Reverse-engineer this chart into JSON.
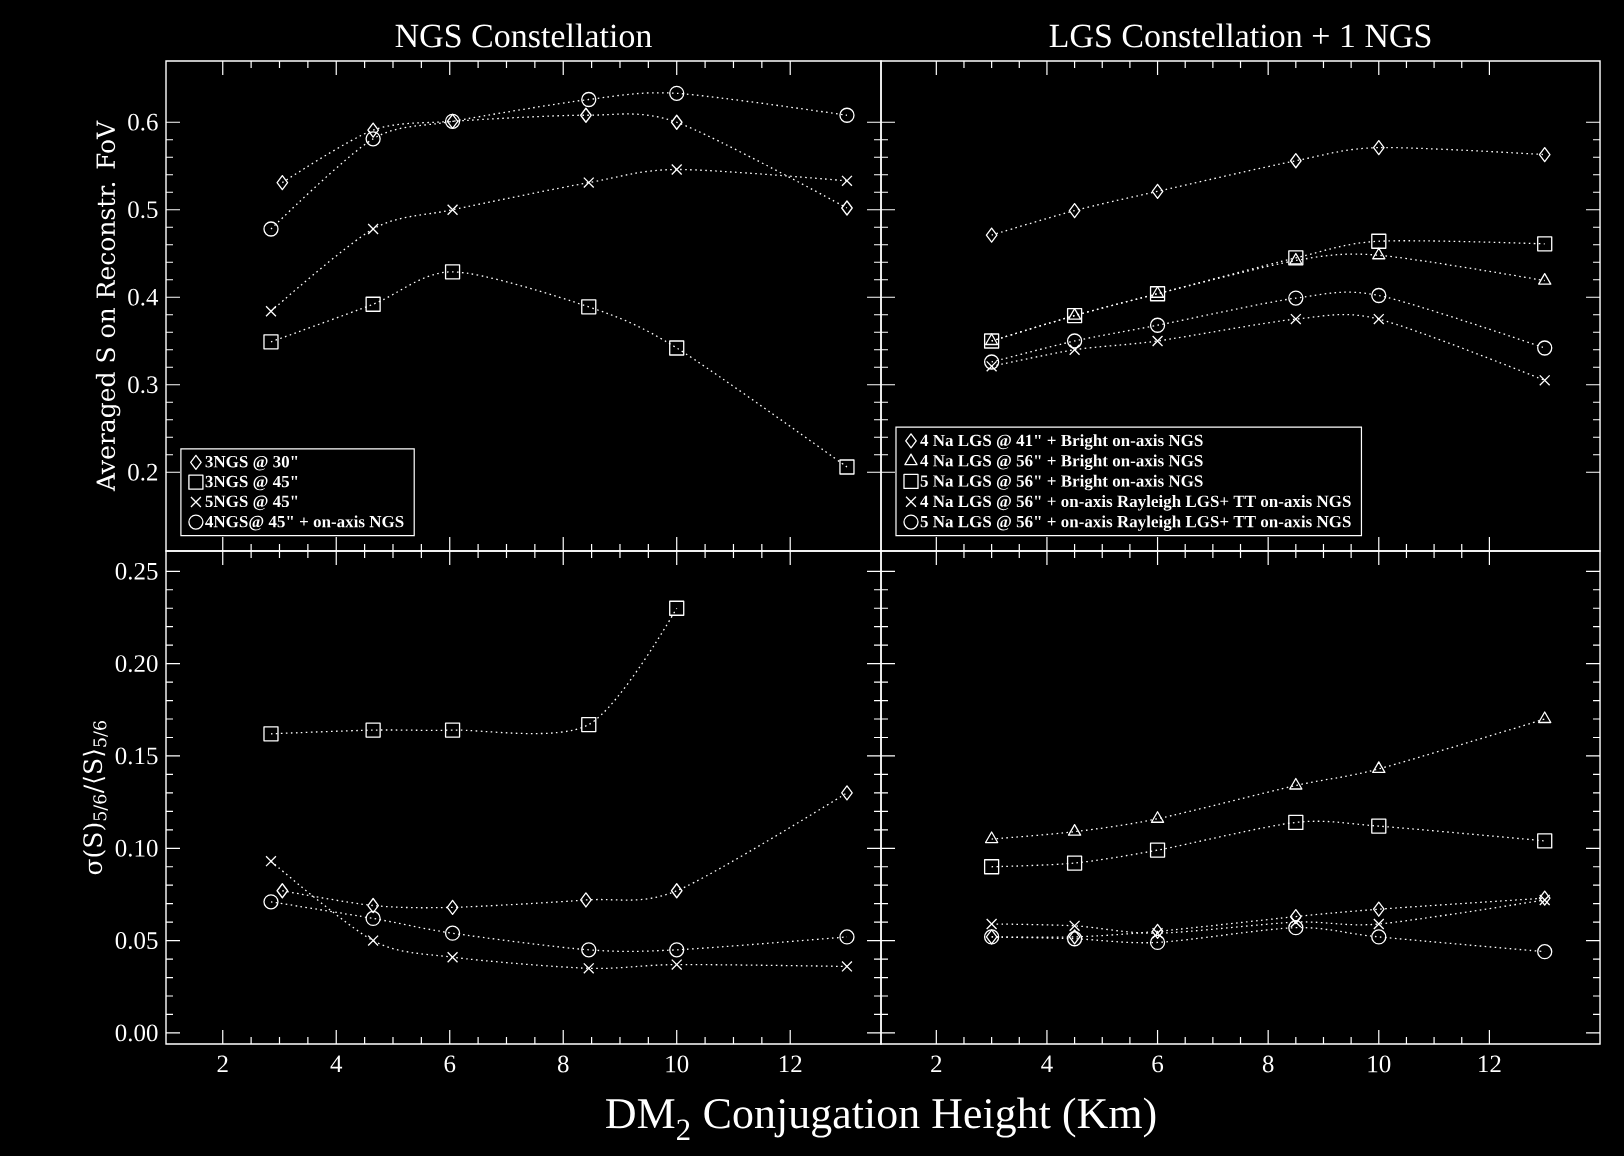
{
  "chart_data": [
    {
      "type": "line",
      "title": "NGS Constellation",
      "ylabel": "Averaged S on Reconstr. FoV",
      "xlim": [
        1,
        13.6
      ],
      "ylim": [
        0.11,
        0.67
      ],
      "xticks": [
        2,
        4,
        6,
        8,
        10,
        12
      ],
      "yticks": [
        0.2,
        0.3,
        0.4,
        0.5,
        0.6
      ],
      "tick_labels": "y",
      "legend": "bottom left",
      "line_style": "dotted",
      "series": [
        {
          "name": "3NGS @ 30\"",
          "color": "#ffffff",
          "marker": "diamond",
          "x": [
            3.05,
            4.65,
            6.05,
            8.4,
            10,
            13
          ],
          "values": [
            0.531,
            0.591,
            0.601,
            0.608,
            0.6,
            0.502
          ]
        },
        {
          "name": "3NGS @ 45\"",
          "color": "#ffffff",
          "marker": "square",
          "x": [
            2.85,
            4.65,
            6.05,
            8.45,
            10,
            13
          ],
          "values": [
            0.349,
            0.392,
            0.429,
            0.389,
            0.342,
            0.206
          ]
        },
        {
          "name": "5NGS @ 45\"",
          "color": "#ffffff",
          "marker": "cross",
          "x": [
            2.85,
            4.65,
            6.05,
            8.45,
            10,
            13
          ],
          "values": [
            0.384,
            0.478,
            0.5,
            0.531,
            0.546,
            0.533
          ]
        },
        {
          "name": "4NGS@ 45\" + on-axis NGS",
          "color": "#ffffff",
          "marker": "circle",
          "x": [
            2.85,
            4.65,
            6.05,
            8.45,
            10,
            13
          ],
          "values": [
            0.478,
            0.581,
            0.601,
            0.626,
            0.633,
            0.608
          ]
        }
      ]
    },
    {
      "type": "line",
      "title": "LGS Constellation + 1 NGS",
      "xlim": [
        1,
        14
      ],
      "ylim": [
        0.11,
        0.67
      ],
      "xticks": [
        2,
        4,
        6,
        8,
        10,
        12
      ],
      "yticks": [
        0.2,
        0.3,
        0.4,
        0.5,
        0.6
      ],
      "tick_labels": false,
      "legend": "bottom left",
      "line_style": "dotted",
      "series": [
        {
          "name": "4 Na LGS @ 41\" + Bright on-axis NGS",
          "color": "#ffffff",
          "marker": "diamond",
          "x": [
            3,
            4.5,
            6,
            8.5,
            10,
            13
          ],
          "values": [
            0.471,
            0.499,
            0.521,
            0.556,
            0.571,
            0.563
          ]
        },
        {
          "name": "4 Na LGS @ 56\" + Bright on-axis NGS",
          "color": "#ffffff",
          "marker": "triangle",
          "x": [
            3,
            4.5,
            6,
            8.5,
            10,
            13
          ],
          "values": [
            0.35,
            0.379,
            0.404,
            0.442,
            0.448,
            0.419
          ]
        },
        {
          "name": "5 Na LGS @ 56\" + Bright on-axis NGS",
          "color": "#ffffff",
          "marker": "square",
          "x": [
            3,
            4.5,
            6,
            8.5,
            10,
            13
          ],
          "values": [
            0.35,
            0.379,
            0.404,
            0.445,
            0.464,
            0.461
          ]
        },
        {
          "name": "4 Na LGS @ 56\" + on-axis Rayleigh LGS+ TT on-axis NGS",
          "color": "#ffffff",
          "marker": "cross",
          "x": [
            3,
            4.5,
            6,
            8.5,
            10,
            13
          ],
          "values": [
            0.321,
            0.34,
            0.35,
            0.375,
            0.375,
            0.305
          ]
        },
        {
          "name": "5 Na LGS @ 56\" + on-axis Rayleigh LGS+ TT on-axis NGS",
          "color": "#ffffff",
          "marker": "circle",
          "x": [
            3,
            4.5,
            6,
            8.5,
            10,
            13
          ],
          "values": [
            0.326,
            0.35,
            0.368,
            0.399,
            0.402,
            0.342
          ]
        }
      ]
    },
    {
      "type": "line",
      "ylabel": "σ(S)$_{5/6}$/⟨S⟩$_{5/6}$",
      "xlabel": "DM$_{2}$ Conjugation Height (Km)",
      "xlim": [
        1,
        13.6
      ],
      "ylim": [
        -0.006,
        0.261
      ],
      "xticks": [
        2,
        4,
        6,
        8,
        10,
        12
      ],
      "yticks": [
        {
          "value": 0,
          "label": "0.00"
        },
        {
          "value": 0.05,
          "label": "0.05"
        },
        {
          "value": 0.1,
          "label": "0.10"
        },
        {
          "value": 0.15,
          "label": "0.15"
        },
        {
          "value": 0.2,
          "label": "0.20"
        },
        {
          "value": 0.25,
          "label": "0.25"
        }
      ],
      "line_style": "dotted",
      "series": [
        {
          "color": "#ffffff",
          "marker": "diamond",
          "x": [
            3.05,
            4.65,
            6.05,
            8.4,
            10,
            13
          ],
          "values": [
            0.077,
            0.069,
            0.068,
            0.072,
            0.077,
            0.13
          ]
        },
        {
          "color": "#ffffff",
          "marker": "square",
          "x": [
            2.85,
            4.65,
            6.05,
            8.45,
            10
          ],
          "values": [
            0.162,
            0.164,
            0.164,
            0.167,
            0.23
          ]
        },
        {
          "color": "#ffffff",
          "marker": "cross",
          "x": [
            2.85,
            4.65,
            6.05,
            8.45,
            10,
            13
          ],
          "values": [
            0.093,
            0.05,
            0.041,
            0.035,
            0.037,
            0.036
          ]
        },
        {
          "color": "#ffffff",
          "marker": "circle",
          "x": [
            2.85,
            4.65,
            6.05,
            8.45,
            10,
            13
          ],
          "values": [
            0.071,
            0.062,
            0.054,
            0.045,
            0.045,
            0.052
          ]
        }
      ]
    },
    {
      "type": "line",
      "xlim": [
        1,
        14
      ],
      "ylim": [
        -0.006,
        0.261
      ],
      "xticks": [
        2,
        4,
        6,
        8,
        10,
        12
      ],
      "yticks": [
        0,
        0.05,
        0.1,
        0.15,
        0.2,
        0.25
      ],
      "tick_labels": "x",
      "line_style": "dotted",
      "series": [
        {
          "color": "#ffffff",
          "marker": "diamond",
          "x": [
            3,
            4.5,
            6,
            8.5,
            10,
            13
          ],
          "values": [
            0.052,
            0.052,
            0.055,
            0.063,
            0.067,
            0.073
          ]
        },
        {
          "color": "#ffffff",
          "marker": "triangle",
          "x": [
            3,
            4.5,
            6,
            8.5,
            10,
            13
          ],
          "values": [
            0.105,
            0.109,
            0.116,
            0.134,
            0.143,
            0.17
          ]
        },
        {
          "color": "#ffffff",
          "marker": "square",
          "x": [
            3,
            4.5,
            6,
            8.5,
            10,
            13
          ],
          "values": [
            0.09,
            0.092,
            0.099,
            0.114,
            0.112,
            0.104
          ]
        },
        {
          "color": "#ffffff",
          "marker": "cross",
          "x": [
            3,
            4.5,
            6,
            8.5,
            10,
            13
          ],
          "values": [
            0.059,
            0.058,
            0.054,
            0.06,
            0.059,
            0.072
          ]
        },
        {
          "color": "#ffffff",
          "marker": "circle",
          "x": [
            3,
            4.5,
            6,
            8.5,
            10,
            13
          ],
          "values": [
            0.052,
            0.051,
            0.049,
            0.057,
            0.052,
            0.044
          ]
        }
      ]
    }
  ]
}
